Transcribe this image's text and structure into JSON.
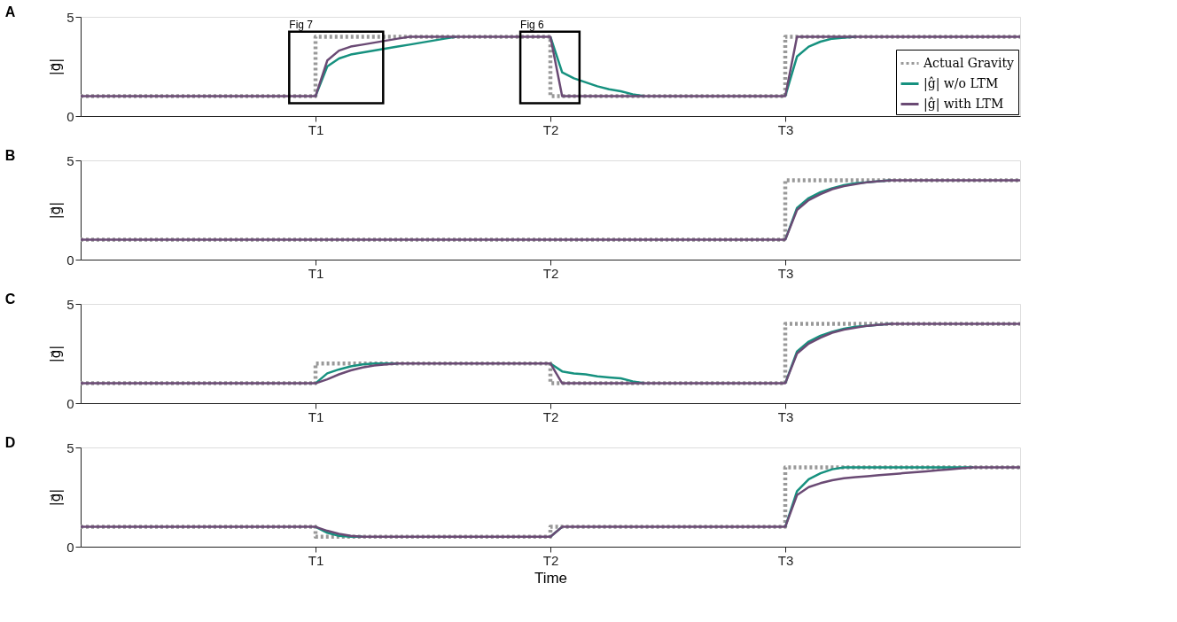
{
  "chart_data": [
    {
      "type": "line",
      "title": "A",
      "ylabel": "|g⃗|",
      "ylim": [
        0,
        5
      ],
      "yticks": [
        0,
        5
      ],
      "legend": "right",
      "annotations": [
        "Fig 7",
        "Fig 6"
      ],
      "categories": [
        null,
        null,
        null,
        null,
        null,
        null,
        null,
        null,
        null,
        null,
        null,
        null,
        null,
        null,
        null,
        null,
        null,
        null,
        null,
        null,
        "T1",
        null,
        null,
        null,
        null,
        null,
        null,
        null,
        null,
        null,
        null,
        null,
        null,
        null,
        null,
        null,
        null,
        null,
        null,
        null,
        "T2",
        null,
        null,
        null,
        null,
        null,
        null,
        null,
        null,
        null,
        null,
        null,
        null,
        null,
        null,
        null,
        null,
        null,
        null,
        null,
        "T3",
        null,
        null,
        null,
        null,
        null,
        null,
        null,
        null,
        null,
        null,
        null,
        null,
        null,
        null,
        null,
        null,
        null,
        null,
        null,
        null
      ],
      "series": [
        {
          "name": "Actual Gravity",
          "type": "step",
          "color": "#999999",
          "line_style": "dotted",
          "values": [
            1,
            1,
            1,
            1,
            1,
            1,
            1,
            1,
            1,
            1,
            1,
            1,
            1,
            1,
            1,
            1,
            1,
            1,
            1,
            1,
            4,
            4,
            4,
            4,
            4,
            4,
            4,
            4,
            4,
            4,
            4,
            4,
            4,
            4,
            4,
            4,
            4,
            4,
            4,
            4,
            1,
            1,
            1,
            1,
            1,
            1,
            1,
            1,
            1,
            1,
            1,
            1,
            1,
            1,
            1,
            1,
            1,
            1,
            1,
            1,
            4,
            4,
            4,
            4,
            4,
            4,
            4,
            4,
            4,
            4,
            4,
            4,
            4,
            4,
            4,
            4,
            4,
            4,
            4,
            4,
            4
          ]
        },
        {
          "name": "|ĝ| w/o LTM",
          "color": "#16917f",
          "line_style": "solid",
          "values": [
            null,
            null,
            null,
            null,
            null,
            null,
            null,
            null,
            null,
            null,
            null,
            null,
            null,
            null,
            null,
            null,
            null,
            null,
            null,
            null,
            1,
            2.5,
            2.9,
            3.1,
            3.2,
            3.3,
            3.4,
            3.5,
            3.6,
            3.7,
            3.8,
            3.9,
            4,
            null,
            null,
            null,
            null,
            null,
            null,
            null,
            4,
            2.2,
            1.9,
            1.7,
            1.5,
            1.35,
            1.25,
            1.1,
            1,
            null,
            null,
            null,
            null,
            null,
            null,
            null,
            null,
            null,
            null,
            null,
            1,
            3.0,
            3.5,
            3.75,
            3.9,
            3.95,
            4,
            null,
            null,
            null,
            null,
            null,
            null,
            null,
            null,
            null,
            null,
            null,
            null,
            null,
            null
          ]
        },
        {
          "name": "|ĝ| with LTM",
          "color": "#6a4a74",
          "line_style": "solid",
          "values": [
            1,
            1,
            1,
            1,
            1,
            1,
            1,
            1,
            1,
            1,
            1,
            1,
            1,
            1,
            1,
            1,
            1,
            1,
            1,
            1,
            1,
            2.8,
            3.3,
            3.5,
            3.6,
            3.7,
            3.8,
            3.9,
            4,
            4,
            4,
            4,
            4,
            4,
            4,
            4,
            4,
            4,
            4,
            4,
            4,
            1,
            1,
            1,
            1,
            1,
            1,
            1,
            1,
            1,
            1,
            1,
            1,
            1,
            1,
            1,
            1,
            1,
            1,
            1,
            1,
            4,
            4,
            4,
            4,
            4,
            4,
            4,
            4,
            4,
            4,
            4,
            4,
            4,
            4,
            4,
            4,
            4,
            4,
            4,
            4
          ]
        }
      ]
    },
    {
      "type": "line",
      "title": "B",
      "ylabel": "|g⃗|",
      "ylim": [
        0,
        5
      ],
      "yticks": [
        0,
        5
      ],
      "categories": [
        null,
        null,
        null,
        null,
        null,
        null,
        null,
        null,
        null,
        null,
        null,
        null,
        null,
        null,
        null,
        null,
        null,
        null,
        null,
        null,
        "T1",
        null,
        null,
        null,
        null,
        null,
        null,
        null,
        null,
        null,
        null,
        null,
        null,
        null,
        null,
        null,
        null,
        null,
        null,
        null,
        "T2",
        null,
        null,
        null,
        null,
        null,
        null,
        null,
        null,
        null,
        null,
        null,
        null,
        null,
        null,
        null,
        null,
        null,
        null,
        null,
        "T3",
        null,
        null,
        null,
        null,
        null,
        null,
        null,
        null,
        null,
        null,
        null,
        null,
        null,
        null,
        null,
        null,
        null,
        null,
        null,
        null
      ],
      "series": [
        {
          "type": "step",
          "color": "#999999",
          "line_style": "dotted",
          "values": [
            1,
            1,
            1,
            1,
            1,
            1,
            1,
            1,
            1,
            1,
            1,
            1,
            1,
            1,
            1,
            1,
            1,
            1,
            1,
            1,
            1,
            1,
            1,
            1,
            1,
            1,
            1,
            1,
            1,
            1,
            1,
            1,
            1,
            1,
            1,
            1,
            1,
            1,
            1,
            1,
            1,
            1,
            1,
            1,
            1,
            1,
            1,
            1,
            1,
            1,
            1,
            1,
            1,
            1,
            1,
            1,
            1,
            1,
            1,
            1,
            4,
            4,
            4,
            4,
            4,
            4,
            4,
            4,
            4,
            4,
            4,
            4,
            4,
            4,
            4,
            4,
            4,
            4,
            4,
            4,
            4
          ]
        },
        {
          "color": "#16917f",
          "line_style": "solid",
          "values": [
            null,
            null,
            null,
            null,
            null,
            null,
            null,
            null,
            null,
            null,
            null,
            null,
            null,
            null,
            null,
            null,
            null,
            null,
            null,
            null,
            null,
            null,
            null,
            null,
            null,
            null,
            null,
            null,
            null,
            null,
            null,
            null,
            null,
            null,
            null,
            null,
            null,
            null,
            null,
            null,
            null,
            null,
            null,
            null,
            null,
            null,
            null,
            null,
            null,
            null,
            null,
            null,
            null,
            null,
            null,
            null,
            null,
            null,
            null,
            null,
            1,
            2.6,
            3.1,
            3.4,
            3.6,
            3.75,
            3.85,
            3.9,
            3.95,
            4,
            null,
            null,
            null,
            null,
            null,
            null,
            null,
            null,
            null,
            null,
            null
          ]
        },
        {
          "color": "#6a4a74",
          "line_style": "solid",
          "values": [
            1,
            1,
            1,
            1,
            1,
            1,
            1,
            1,
            1,
            1,
            1,
            1,
            1,
            1,
            1,
            1,
            1,
            1,
            1,
            1,
            1,
            1,
            1,
            1,
            1,
            1,
            1,
            1,
            1,
            1,
            1,
            1,
            1,
            1,
            1,
            1,
            1,
            1,
            1,
            1,
            1,
            1,
            1,
            1,
            1,
            1,
            1,
            1,
            1,
            1,
            1,
            1,
            1,
            1,
            1,
            1,
            1,
            1,
            1,
            1,
            1,
            2.5,
            3.0,
            3.3,
            3.55,
            3.7,
            3.8,
            3.9,
            3.95,
            4,
            4,
            4,
            4,
            4,
            4,
            4,
            4,
            4,
            4,
            4,
            4
          ]
        }
      ]
    },
    {
      "type": "line",
      "title": "C",
      "ylabel": "|g⃗|",
      "ylim": [
        0,
        5
      ],
      "yticks": [
        0,
        5
      ],
      "categories": [
        null,
        null,
        null,
        null,
        null,
        null,
        null,
        null,
        null,
        null,
        null,
        null,
        null,
        null,
        null,
        null,
        null,
        null,
        null,
        null,
        "T1",
        null,
        null,
        null,
        null,
        null,
        null,
        null,
        null,
        null,
        null,
        null,
        null,
        null,
        null,
        null,
        null,
        null,
        null,
        null,
        "T2",
        null,
        null,
        null,
        null,
        null,
        null,
        null,
        null,
        null,
        null,
        null,
        null,
        null,
        null,
        null,
        null,
        null,
        null,
        null,
        "T3",
        null,
        null,
        null,
        null,
        null,
        null,
        null,
        null,
        null,
        null,
        null,
        null,
        null,
        null,
        null,
        null,
        null,
        null,
        null,
        null
      ],
      "series": [
        {
          "type": "step",
          "color": "#999999",
          "line_style": "dotted",
          "values": [
            1,
            1,
            1,
            1,
            1,
            1,
            1,
            1,
            1,
            1,
            1,
            1,
            1,
            1,
            1,
            1,
            1,
            1,
            1,
            1,
            2,
            2,
            2,
            2,
            2,
            2,
            2,
            2,
            2,
            2,
            2,
            2,
            2,
            2,
            2,
            2,
            2,
            2,
            2,
            2,
            1,
            1,
            1,
            1,
            1,
            1,
            1,
            1,
            1,
            1,
            1,
            1,
            1,
            1,
            1,
            1,
            1,
            1,
            1,
            1,
            4,
            4,
            4,
            4,
            4,
            4,
            4,
            4,
            4,
            4,
            4,
            4,
            4,
            4,
            4,
            4,
            4,
            4,
            4,
            4,
            4
          ]
        },
        {
          "color": "#16917f",
          "line_style": "solid",
          "values": [
            null,
            null,
            null,
            null,
            null,
            null,
            null,
            null,
            null,
            null,
            null,
            null,
            null,
            null,
            null,
            null,
            null,
            null,
            null,
            null,
            1,
            1.5,
            1.7,
            1.85,
            1.95,
            2,
            2,
            2,
            null,
            null,
            null,
            null,
            null,
            null,
            null,
            null,
            null,
            null,
            null,
            null,
            2,
            1.6,
            1.5,
            1.45,
            1.35,
            1.3,
            1.25,
            1.1,
            1,
            null,
            null,
            null,
            null,
            null,
            null,
            null,
            null,
            null,
            null,
            null,
            1,
            2.6,
            3.1,
            3.4,
            3.6,
            3.75,
            3.85,
            3.9,
            3.95,
            4,
            null,
            null,
            null,
            null,
            null,
            null,
            null,
            null,
            null,
            null,
            null
          ]
        },
        {
          "color": "#6a4a74",
          "line_style": "solid",
          "values": [
            1,
            1,
            1,
            1,
            1,
            1,
            1,
            1,
            1,
            1,
            1,
            1,
            1,
            1,
            1,
            1,
            1,
            1,
            1,
            1,
            1,
            1.2,
            1.45,
            1.65,
            1.8,
            1.9,
            1.95,
            2,
            2,
            2,
            2,
            2,
            2,
            2,
            2,
            2,
            2,
            2,
            2,
            2,
            2,
            1,
            1,
            1,
            1,
            1,
            1,
            1,
            1,
            1,
            1,
            1,
            1,
            1,
            1,
            1,
            1,
            1,
            1,
            1,
            1,
            2.5,
            3.0,
            3.3,
            3.55,
            3.7,
            3.8,
            3.9,
            3.95,
            4,
            4,
            4,
            4,
            4,
            4,
            4,
            4,
            4,
            4,
            4,
            4
          ]
        }
      ]
    },
    {
      "type": "line",
      "title": "D",
      "xlabel": "Time",
      "ylabel": "|g⃗|",
      "ylim": [
        0,
        5
      ],
      "yticks": [
        0,
        5
      ],
      "categories": [
        null,
        null,
        null,
        null,
        null,
        null,
        null,
        null,
        null,
        null,
        null,
        null,
        null,
        null,
        null,
        null,
        null,
        null,
        null,
        null,
        "T1",
        null,
        null,
        null,
        null,
        null,
        null,
        null,
        null,
        null,
        null,
        null,
        null,
        null,
        null,
        null,
        null,
        null,
        null,
        null,
        "T2",
        null,
        null,
        null,
        null,
        null,
        null,
        null,
        null,
        null,
        null,
        null,
        null,
        null,
        null,
        null,
        null,
        null,
        null,
        null,
        "T3",
        null,
        null,
        null,
        null,
        null,
        null,
        null,
        null,
        null,
        null,
        null,
        null,
        null,
        null,
        null,
        null,
        null,
        null,
        null,
        null
      ],
      "series": [
        {
          "type": "step",
          "color": "#999999",
          "line_style": "dotted",
          "values": [
            1,
            1,
            1,
            1,
            1,
            1,
            1,
            1,
            1,
            1,
            1,
            1,
            1,
            1,
            1,
            1,
            1,
            1,
            1,
            1,
            0.5,
            0.5,
            0.5,
            0.5,
            0.5,
            0.5,
            0.5,
            0.5,
            0.5,
            0.5,
            0.5,
            0.5,
            0.5,
            0.5,
            0.5,
            0.5,
            0.5,
            0.5,
            0.5,
            0.5,
            1,
            1,
            1,
            1,
            1,
            1,
            1,
            1,
            1,
            1,
            1,
            1,
            1,
            1,
            1,
            1,
            1,
            1,
            1,
            1,
            4,
            4,
            4,
            4,
            4,
            4,
            4,
            4,
            4,
            4,
            4,
            4,
            4,
            4,
            4,
            4,
            4,
            4,
            4,
            4,
            4
          ]
        },
        {
          "color": "#16917f",
          "line_style": "solid",
          "values": [
            null,
            null,
            null,
            null,
            null,
            null,
            null,
            null,
            null,
            null,
            null,
            null,
            null,
            null,
            null,
            null,
            null,
            null,
            null,
            null,
            1,
            0.7,
            0.55,
            0.5,
            0.5,
            null,
            null,
            null,
            null,
            null,
            null,
            null,
            null,
            null,
            null,
            null,
            null,
            null,
            null,
            null,
            0.5,
            1,
            null,
            null,
            null,
            null,
            null,
            null,
            null,
            null,
            null,
            null,
            null,
            null,
            null,
            null,
            null,
            null,
            null,
            null,
            1,
            2.8,
            3.4,
            3.7,
            3.9,
            4,
            4,
            4,
            4,
            4,
            4,
            4,
            4,
            4,
            4,
            4,
            4,
            null,
            null,
            null,
            null
          ]
        },
        {
          "color": "#6a4a74",
          "line_style": "solid",
          "values": [
            1,
            1,
            1,
            1,
            1,
            1,
            1,
            1,
            1,
            1,
            1,
            1,
            1,
            1,
            1,
            1,
            1,
            1,
            1,
            1,
            1,
            0.8,
            0.65,
            0.55,
            0.5,
            0.5,
            0.5,
            0.5,
            0.5,
            0.5,
            0.5,
            0.5,
            0.5,
            0.5,
            0.5,
            0.5,
            0.5,
            0.5,
            0.5,
            0.5,
            0.5,
            1,
            1,
            1,
            1,
            1,
            1,
            1,
            1,
            1,
            1,
            1,
            1,
            1,
            1,
            1,
            1,
            1,
            1,
            1,
            1,
            2.6,
            3.0,
            3.2,
            3.35,
            3.45,
            3.5,
            3.55,
            3.6,
            3.65,
            3.7,
            3.75,
            3.8,
            3.85,
            3.9,
            3.95,
            4,
            4,
            4,
            4,
            4
          ]
        }
      ]
    }
  ]
}
